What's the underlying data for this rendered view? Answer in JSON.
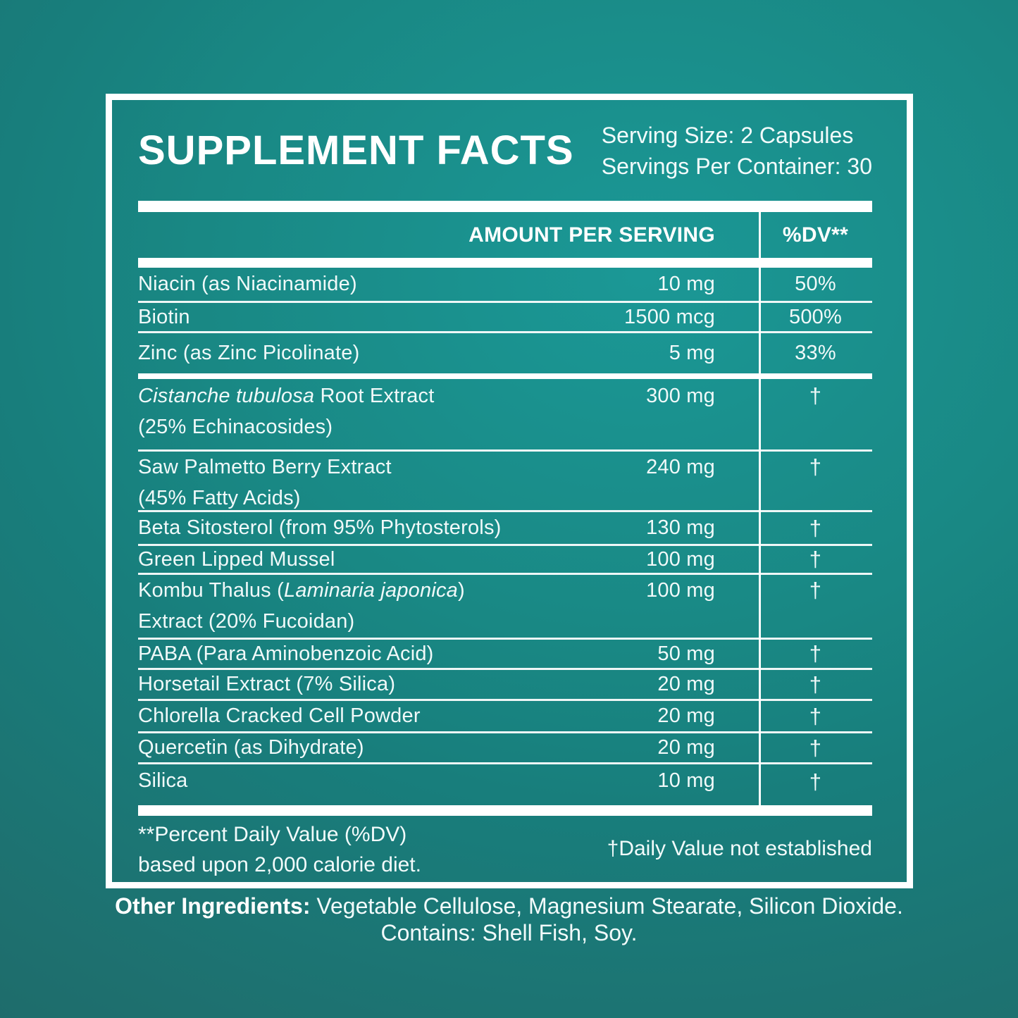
{
  "title": "SUPPLEMENT FACTS",
  "serving": {
    "line1": "Serving Size: 2 Capsules",
    "line2": "Servings Per Container: 30"
  },
  "table": {
    "headers": {
      "amount": "AMOUNT PER SERVING",
      "dv": "%DV**"
    },
    "groups": [
      {
        "rows": [
          {
            "name": [
              {
                "t": "Niacin (as Niacinamide)"
              }
            ],
            "amount": "10 mg",
            "dv": "50%"
          },
          {
            "name": [
              {
                "t": "Biotin"
              }
            ],
            "amount": "1500 mcg",
            "dv": "500%"
          },
          {
            "name": [
              {
                "t": "Zinc (as Zinc Picolinate)"
              }
            ],
            "amount": "5 mg",
            "dv": "33%"
          }
        ]
      },
      {
        "rows": [
          {
            "name": [
              {
                "t": "Cistanche tubulosa",
                "i": true
              },
              {
                "t": " Root Extract"
              }
            ],
            "line2": "(25% Echinacosides)",
            "amount": "300 mg",
            "dv": "†"
          },
          {
            "name": [
              {
                "t": "Saw Palmetto Berry Extract"
              }
            ],
            "line2": "(45% Fatty Acids)",
            "amount": "240 mg",
            "dv": "†"
          },
          {
            "name": [
              {
                "t": "Beta Sitosterol (from 95% Phytosterols)"
              }
            ],
            "amount": "130 mg",
            "dv": "†"
          },
          {
            "name": [
              {
                "t": "Green Lipped Mussel"
              }
            ],
            "amount": "100 mg",
            "dv": "†"
          },
          {
            "name": [
              {
                "t": "Kombu Thalus ("
              },
              {
                "t": "Laminaria japonica",
                "i": true
              },
              {
                "t": ")"
              }
            ],
            "line2": "Extract (20% Fucoidan)",
            "amount": "100 mg",
            "dv": "†"
          },
          {
            "name": [
              {
                "t": "PABA (Para Aminobenzoic Acid)"
              }
            ],
            "amount": "50 mg",
            "dv": "†"
          },
          {
            "name": [
              {
                "t": "Horsetail Extract (7% Silica)"
              }
            ],
            "amount": "20 mg",
            "dv": "†"
          },
          {
            "name": [
              {
                "t": "Chlorella Cracked Cell Powder"
              }
            ],
            "amount": "20 mg",
            "dv": "†"
          },
          {
            "name": [
              {
                "t": "Quercetin (as Dihydrate)"
              }
            ],
            "amount": "20 mg",
            "dv": "†"
          },
          {
            "name": [
              {
                "t": "Silica"
              }
            ],
            "amount": "10 mg",
            "dv": "†"
          }
        ]
      }
    ]
  },
  "footnotes": {
    "left_line1": "**Percent Daily Value (%DV)",
    "left_line2": "based upon 2,000 calorie diet.",
    "right": "†Daily Value not established"
  },
  "other_ingredients": {
    "label": "Other Ingredients:",
    "line1_rest": " Vegetable Cellulose, Magnesium Stearate, Silicon Dioxide.",
    "line2": "Contains: Shell Fish, Soy."
  },
  "colors": {
    "background_teal_light": "#1b9896",
    "background_teal_dark": "#1f6a69",
    "panel_border_white": "#ffffff",
    "text_white": "#f2fbfb"
  }
}
